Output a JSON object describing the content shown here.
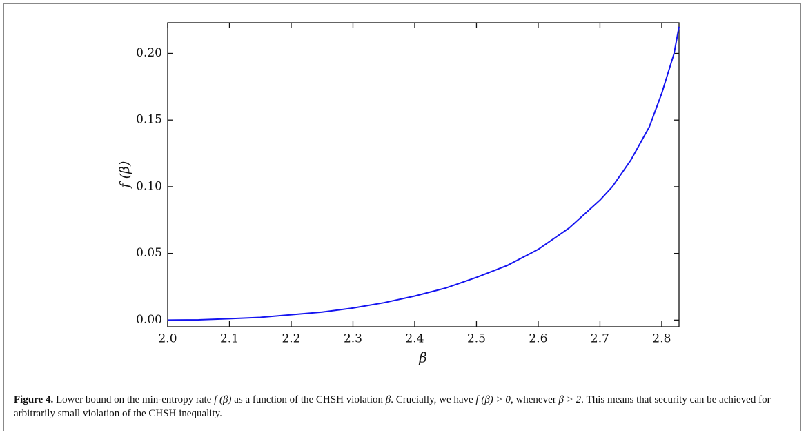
{
  "chart_data": {
    "type": "line",
    "x": [
      2.0,
      2.05,
      2.1,
      2.15,
      2.2,
      2.25,
      2.3,
      2.35,
      2.4,
      2.45,
      2.5,
      2.55,
      2.6,
      2.65,
      2.7,
      2.72,
      2.75,
      2.78,
      2.8,
      2.81,
      2.82,
      2.828
    ],
    "series": [
      {
        "color": "#1414f0",
        "values": [
          0,
          0.0002,
          0.001,
          0.002,
          0.004,
          0.006,
          0.009,
          0.013,
          0.018,
          0.024,
          0.032,
          0.041,
          0.053,
          0.069,
          0.09,
          0.1,
          0.12,
          0.145,
          0.17,
          0.185,
          0.2,
          0.22
        ]
      }
    ],
    "x_label": "β",
    "y_label": "f (β)",
    "xlim": [
      2.0,
      2.828
    ],
    "ylim": [
      -0.005,
      0.223
    ],
    "xticks": [
      {
        "value": 2.0,
        "label": "2.0"
      },
      2.1,
      2.2,
      2.3,
      2.4,
      2.5,
      2.6,
      2.7,
      2.8
    ],
    "yticks": [
      {
        "value": 0,
        "label": "0.00"
      },
      0.05,
      {
        "value": 0.1,
        "label": "0.10"
      },
      0.15,
      {
        "value": 0.2,
        "label": "0.20"
      }
    ]
  },
  "caption": {
    "label": "Figure 4.",
    "parts": [
      " Lower bound on the min-entropy rate ",
      "f (β)",
      " as a function of the CHSH violation ",
      "β",
      ". Crucially, we have ",
      "f (β) > 0",
      ", whenever ",
      "β > 2",
      ". This means that security can be achieved for arbitrarily small violation of the CHSH inequality."
    ]
  }
}
